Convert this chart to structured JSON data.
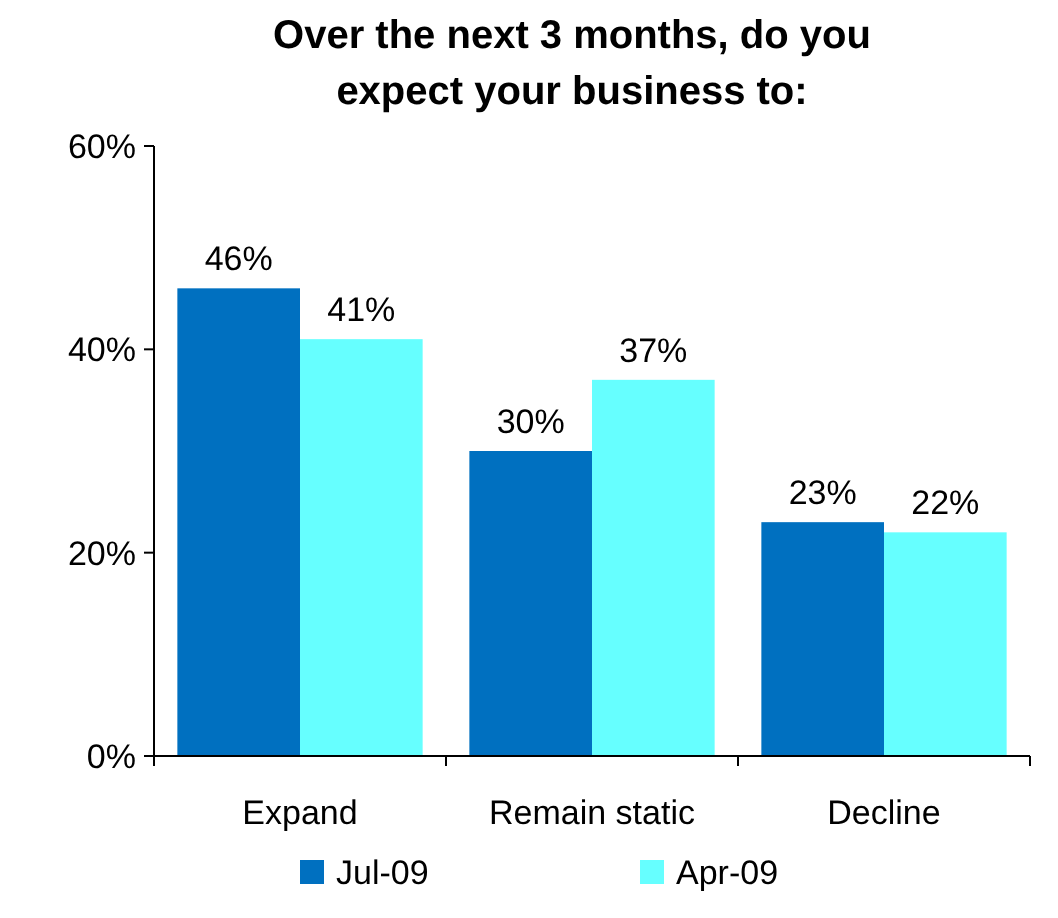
{
  "chart_data": {
    "type": "bar",
    "title": "Over the next 3 months, do you\nexpect your business to:",
    "categories": [
      "Expand",
      "Remain static",
      "Decline"
    ],
    "series": [
      {
        "name": "Jul-09",
        "color": "#0070c0",
        "values": [
          46,
          30,
          23
        ],
        "value_labels": [
          "46%",
          "30%",
          "23%"
        ]
      },
      {
        "name": "Apr-09",
        "color": "#66ffff",
        "values": [
          41,
          37,
          22
        ],
        "value_labels": [
          "41%",
          "37%",
          "22%"
        ]
      }
    ],
    "ylim": [
      0,
      60
    ],
    "yticks": [
      {
        "value": 0,
        "label": "0%"
      },
      {
        "value": 20,
        "label": "20%"
      },
      {
        "value": 40,
        "label": "40%"
      },
      {
        "value": 60,
        "label": "60%"
      }
    ],
    "grid": false,
    "legend": "bottom"
  }
}
